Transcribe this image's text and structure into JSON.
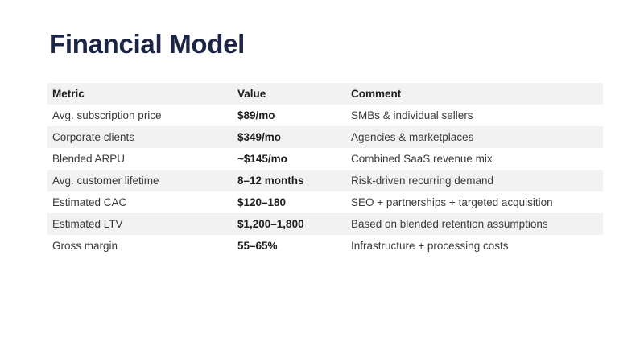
{
  "title": "Financial Model",
  "table": {
    "headers": [
      "Metric",
      "Value",
      "Comment"
    ],
    "rows": [
      {
        "metric": "Avg. subscription price",
        "value": "$89/mo",
        "comment": "SMBs & individual sellers"
      },
      {
        "metric": "Corporate clients",
        "value": "$349/mo",
        "comment": "Agencies & marketplaces"
      },
      {
        "metric": "Blended ARPU",
        "value": "~$145/mo",
        "comment": "Combined SaaS revenue mix"
      },
      {
        "metric": "Avg. customer lifetime",
        "value": "8–12 months",
        "comment": "Risk-driven recurring demand"
      },
      {
        "metric": "Estimated CAC",
        "value": "$120–180",
        "comment": "SEO + partnerships + targeted acquisition"
      },
      {
        "metric": "Estimated LTV",
        "value": "$1,200–1,800",
        "comment": "Based on blended retention assumptions"
      },
      {
        "metric": "Gross margin",
        "value": "55–65%",
        "comment": "Infrastructure + processing costs"
      }
    ]
  }
}
